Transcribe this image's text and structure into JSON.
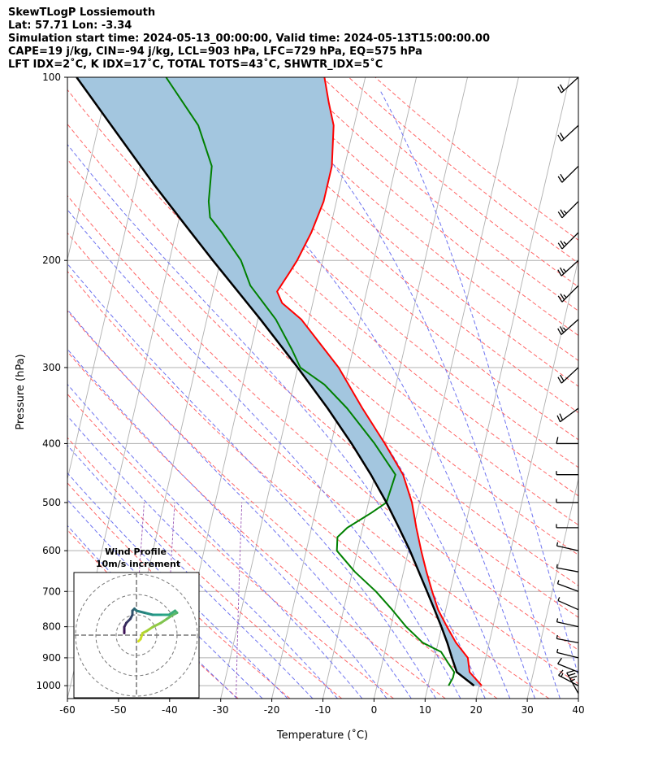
{
  "header": {
    "line1": "SkewTLogP Lossiemouth",
    "line2": "Lat: 57.71    Lon: -3.34",
    "line3": "Simulation start time: 2024-05-13_00:00:00, Valid time: 2024-05-13T15:00:00.00",
    "line4": "CAPE=19 j/kg, CIN=-94 j/kg, LCL=903 hPa, LFC=729 hPa, EQ=575 hPa",
    "line5": "LFT IDX=2˚C, K IDX=17˚C, TOTAL TOTS=43˚C, SHWTR_IDX=5˚C"
  },
  "colors": {
    "temperature": "#ff0000",
    "dewpoint": "#008000",
    "parcel": "#000000",
    "cape_fill": "#a3c6df",
    "dry_adiabat": "#ff6666",
    "moist_adiabat": "#6f74f0",
    "isotherm": "#b0b0b0",
    "mixing_ratio": "#9b59b6",
    "hodo_dark": "#3b0f53",
    "hodo_mid": "#21a38a",
    "hodo_light": "#d6e21a"
  },
  "chart_data": [
    {
      "type": "line",
      "subtype": "skew-t log-p",
      "xlabel": "Temperature (˚C)",
      "ylabel": "Pressure (hPa)",
      "xlim": [
        -60,
        40
      ],
      "ylim": [
        1050,
        100
      ],
      "y_scale": "log",
      "x_ticks": [
        -60,
        -50,
        -40,
        -30,
        -20,
        -10,
        0,
        10,
        20,
        30,
        40
      ],
      "y_ticks": [
        100,
        200,
        300,
        400,
        500,
        600,
        700,
        800,
        900,
        1000
      ],
      "grid": true,
      "series": [
        {
          "role": "temperature",
          "points": [
            [
              1000,
              20.5
            ],
            [
              950,
              17.5
            ],
            [
              900,
              16.5
            ],
            [
              850,
              13.5
            ],
            [
              800,
              11.0
            ],
            [
              750,
              8.5
            ],
            [
              700,
              6.5
            ],
            [
              650,
              4.5
            ],
            [
              600,
              2.5
            ],
            [
              550,
              0.5
            ],
            [
              500,
              -1.5
            ],
            [
              450,
              -4.5
            ],
            [
              400,
              -9.5
            ],
            [
              350,
              -15.5
            ],
            [
              300,
              -22.0
            ],
            [
              250,
              -31.5
            ],
            [
              235,
              -36.0
            ],
            [
              225,
              -37.5
            ],
            [
              210,
              -36.0
            ],
            [
              200,
              -35.0
            ],
            [
              180,
              -33.5
            ],
            [
              160,
              -32.5
            ],
            [
              140,
              -32.5
            ],
            [
              120,
              -34.0
            ],
            [
              110,
              -36.0
            ],
            [
              100,
              -38.0
            ]
          ]
        },
        {
          "role": "dewpoint",
          "points": [
            [
              1000,
              14.0
            ],
            [
              970,
              14.5
            ],
            [
              950,
              14.5
            ],
            [
              920,
              13.0
            ],
            [
              880,
              11.0
            ],
            [
              850,
              7.0
            ],
            [
              800,
              3.0
            ],
            [
              750,
              -0.5
            ],
            [
              700,
              -4.5
            ],
            [
              650,
              -9.5
            ],
            [
              600,
              -14.0
            ],
            [
              570,
              -14.5
            ],
            [
              550,
              -13.0
            ],
            [
              520,
              -9.0
            ],
            [
              500,
              -6.5
            ],
            [
              450,
              -6.0
            ],
            [
              400,
              -11.5
            ],
            [
              350,
              -18.5
            ],
            [
              320,
              -24.0
            ],
            [
              300,
              -29.5
            ],
            [
              280,
              -32.0
            ],
            [
              250,
              -36.5
            ],
            [
              220,
              -43.0
            ],
            [
              200,
              -46.0
            ],
            [
              180,
              -51.0
            ],
            [
              170,
              -54.0
            ],
            [
              160,
              -55.0
            ],
            [
              140,
              -56.0
            ],
            [
              120,
              -60.5
            ],
            [
              100,
              -69.0
            ]
          ]
        },
        {
          "role": "parcel",
          "points": [
            [
              1000,
              19.0
            ],
            [
              950,
              15.0
            ],
            [
              903,
              13.5
            ],
            [
              850,
              11.8
            ],
            [
              800,
              9.9
            ],
            [
              750,
              7.8
            ],
            [
              700,
              5.5
            ],
            [
              650,
              3.0
            ],
            [
              600,
              0.3
            ],
            [
              550,
              -2.9
            ],
            [
              500,
              -6.5
            ],
            [
              450,
              -10.8
            ],
            [
              400,
              -16.0
            ],
            [
              350,
              -22.3
            ],
            [
              300,
              -30.0
            ],
            [
              250,
              -39.5
            ],
            [
              200,
              -51.5
            ],
            [
              175,
              -58.5
            ],
            [
              150,
              -66.5
            ],
            [
              125,
              -75.5
            ],
            [
              100,
              -86.5
            ]
          ]
        }
      ],
      "wind_barbs": [
        {
          "p": 1030,
          "u": 25,
          "v": -40
        },
        {
          "p": 1000,
          "u": 17,
          "v": -8
        },
        {
          "p": 950,
          "u": 11,
          "v": -4
        },
        {
          "p": 900,
          "u": 9,
          "v": -2
        },
        {
          "p": 850,
          "u": 6,
          "v": -1
        },
        {
          "p": 800,
          "u": 5,
          "v": -1
        },
        {
          "p": 750,
          "u": 5,
          "v": -2
        },
        {
          "p": 700,
          "u": 6,
          "v": -2
        },
        {
          "p": 650,
          "u": 6,
          "v": -1
        },
        {
          "p": 600,
          "u": 5,
          "v": -1
        },
        {
          "p": 550,
          "u": 5,
          "v": 0
        },
        {
          "p": 500,
          "u": 6,
          "v": 0
        },
        {
          "p": 450,
          "u": 7,
          "v": 0
        },
        {
          "p": 400,
          "u": 10,
          "v": 0
        },
        {
          "p": 350,
          "u": 18,
          "v": 12
        },
        {
          "p": 300,
          "u": 18,
          "v": 15
        },
        {
          "p": 250,
          "u": 20,
          "v": 16
        },
        {
          "p": 220,
          "u": 20,
          "v": 18
        },
        {
          "p": 200,
          "u": 22,
          "v": 18
        },
        {
          "p": 180,
          "u": 20,
          "v": 18
        },
        {
          "p": 160,
          "u": 20,
          "v": 18
        },
        {
          "p": 140,
          "u": 18,
          "v": 16
        },
        {
          "p": 120,
          "u": 18,
          "v": 15
        },
        {
          "p": 100,
          "u": 17,
          "v": 14
        }
      ]
    },
    {
      "type": "line",
      "subtype": "hodograph",
      "title": "Wind Profile",
      "subtitle": "10m/s increment",
      "ring_step": 10,
      "rings": [
        10,
        20,
        30
      ],
      "points": [
        [
          1,
          -3
        ],
        [
          2,
          -2
        ],
        [
          3,
          1
        ],
        [
          5,
          2
        ],
        [
          8,
          4
        ],
        [
          12,
          6
        ],
        [
          15,
          8
        ],
        [
          18,
          10
        ],
        [
          20,
          11
        ],
        [
          19,
          12
        ],
        [
          16,
          10
        ],
        [
          12,
          10
        ],
        [
          8,
          10
        ],
        [
          4,
          11
        ],
        [
          0,
          12
        ],
        [
          -1,
          13
        ],
        [
          -2,
          12
        ],
        [
          -2,
          10
        ],
        [
          -3,
          8
        ],
        [
          -5,
          6
        ],
        [
          -6,
          4
        ],
        [
          -6,
          2
        ],
        [
          -6,
          1
        ]
      ]
    }
  ]
}
